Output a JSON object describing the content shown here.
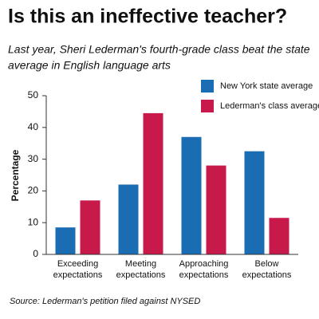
{
  "chart_data": {
    "type": "bar",
    "title": "Is this an ineffective teacher?",
    "subtitle": [
      "Last year, Sheri Lederman's fourth-grade class beat the state",
      "average in English language arts"
    ],
    "y_label": "Percentage",
    "source": "Source: Lederman's petition filed against NYSED",
    "categories": [
      "Exceeding expectations",
      "Meeting expectations",
      "Approaching expectations",
      "Below expectations"
    ],
    "series": [
      {
        "name": "New York state average",
        "color": "#1b6db3",
        "values": [
          8.5,
          22,
          37,
          32.5
        ]
      },
      {
        "name": "Lederman's class average",
        "color": "#c8194b",
        "values": [
          17,
          44.5,
          28,
          11.5
        ]
      }
    ],
    "ylim": [
      0,
      50
    ],
    "yticks": [
      0,
      10,
      20,
      30,
      40,
      50
    ],
    "grid": false,
    "legend": "upper right"
  }
}
